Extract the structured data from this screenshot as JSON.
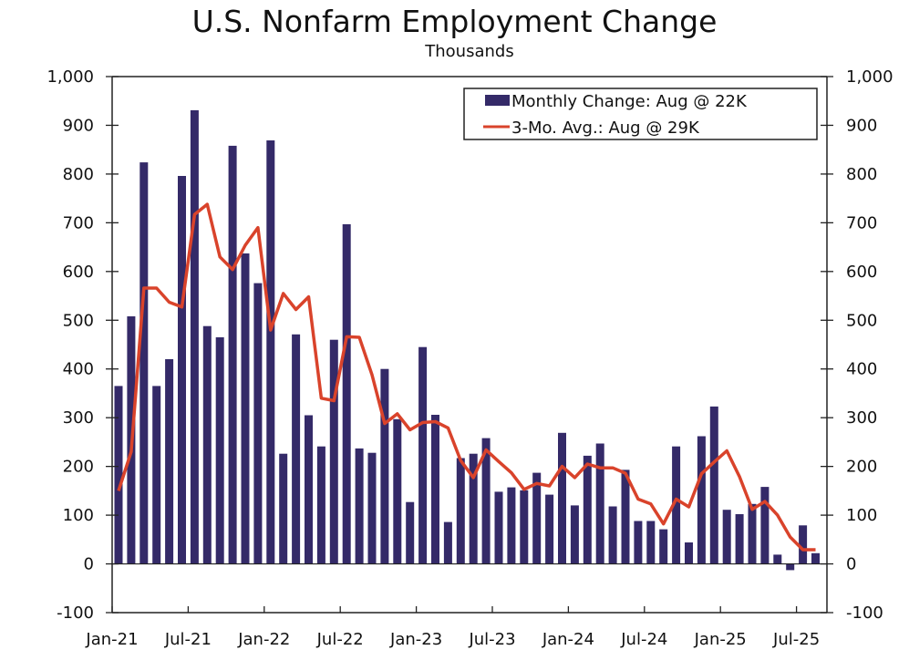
{
  "chart_data": {
    "type": "bar",
    "title": "U.S. Nonfarm Employment Change",
    "subtitle": "Thousands",
    "xlabel": "",
    "ylabel": "",
    "ylim": [
      -100,
      1000
    ],
    "y_ticks": [
      -100,
      0,
      100,
      200,
      300,
      400,
      500,
      600,
      700,
      800,
      900,
      1000
    ],
    "y_tick_labels": [
      "-100",
      "0",
      "100",
      "200",
      "300",
      "400",
      "500",
      "600",
      "700",
      "800",
      "900",
      "1,000"
    ],
    "x_tick_labels": [
      "Jan-21",
      "Jul-21",
      "Jan-22",
      "Jul-22",
      "Jan-23",
      "Jul-23",
      "Jan-24",
      "Jul-24",
      "Jan-25",
      "Jul-25"
    ],
    "x_tick_month_index": [
      0,
      6,
      12,
      18,
      24,
      30,
      36,
      42,
      48,
      54
    ],
    "grid": false,
    "legend_position": "top-right",
    "colors": {
      "bars": "#342a68",
      "line": "#d9432b",
      "axis": "#222222"
    },
    "categories": [
      "Jan-21",
      "Feb-21",
      "Mar-21",
      "Apr-21",
      "May-21",
      "Jun-21",
      "Jul-21",
      "Aug-21",
      "Sep-21",
      "Oct-21",
      "Nov-21",
      "Dec-21",
      "Jan-22",
      "Feb-22",
      "Mar-22",
      "Apr-22",
      "May-22",
      "Jun-22",
      "Jul-22",
      "Aug-22",
      "Sep-22",
      "Oct-22",
      "Nov-22",
      "Dec-22",
      "Jan-23",
      "Feb-23",
      "Mar-23",
      "Apr-23",
      "May-23",
      "Jun-23",
      "Jul-23",
      "Aug-23",
      "Sep-23",
      "Oct-23",
      "Nov-23",
      "Dec-23",
      "Jan-24",
      "Feb-24",
      "Mar-24",
      "Apr-24",
      "May-24",
      "Jun-24",
      "Jul-24",
      "Aug-24",
      "Sep-24",
      "Oct-24",
      "Nov-24",
      "Dec-24",
      "Jan-25",
      "Feb-25",
      "Mar-25",
      "Apr-25",
      "May-25",
      "Jun-25",
      "Jul-25",
      "Aug-25"
    ],
    "series": [
      {
        "name": "Monthly Change: Aug @ 22K",
        "type": "bar",
        "values": [
          365,
          508,
          824,
          365,
          420,
          796,
          931,
          488,
          465,
          858,
          637,
          576,
          869,
          226,
          471,
          305,
          241,
          460,
          697,
          237,
          228,
          400,
          297,
          127,
          445,
          306,
          86,
          217,
          226,
          258,
          148,
          157,
          151,
          187,
          142,
          269,
          120,
          222,
          247,
          118,
          193,
          88,
          88,
          71,
          241,
          44,
          262,
          323,
          111,
          102,
          123,
          158,
          19,
          -13,
          79,
          22
        ]
      },
      {
        "name": "3-Mo. Avg.: Aug @ 29K",
        "type": "line",
        "values": [
          150,
          230,
          566,
          566,
          537,
          527,
          717,
          738,
          630,
          604,
          654,
          690,
          480,
          555,
          522,
          548,
          340,
          335,
          466,
          465,
          388,
          288,
          308,
          275,
          290,
          292,
          279,
          212,
          177,
          234,
          210,
          187,
          153,
          165,
          160,
          200,
          177,
          205,
          197,
          197,
          186,
          133,
          123,
          82,
          133,
          117,
          185,
          209,
          232,
          179,
          112,
          128,
          100,
          55,
          29,
          29
        ]
      }
    ]
  }
}
